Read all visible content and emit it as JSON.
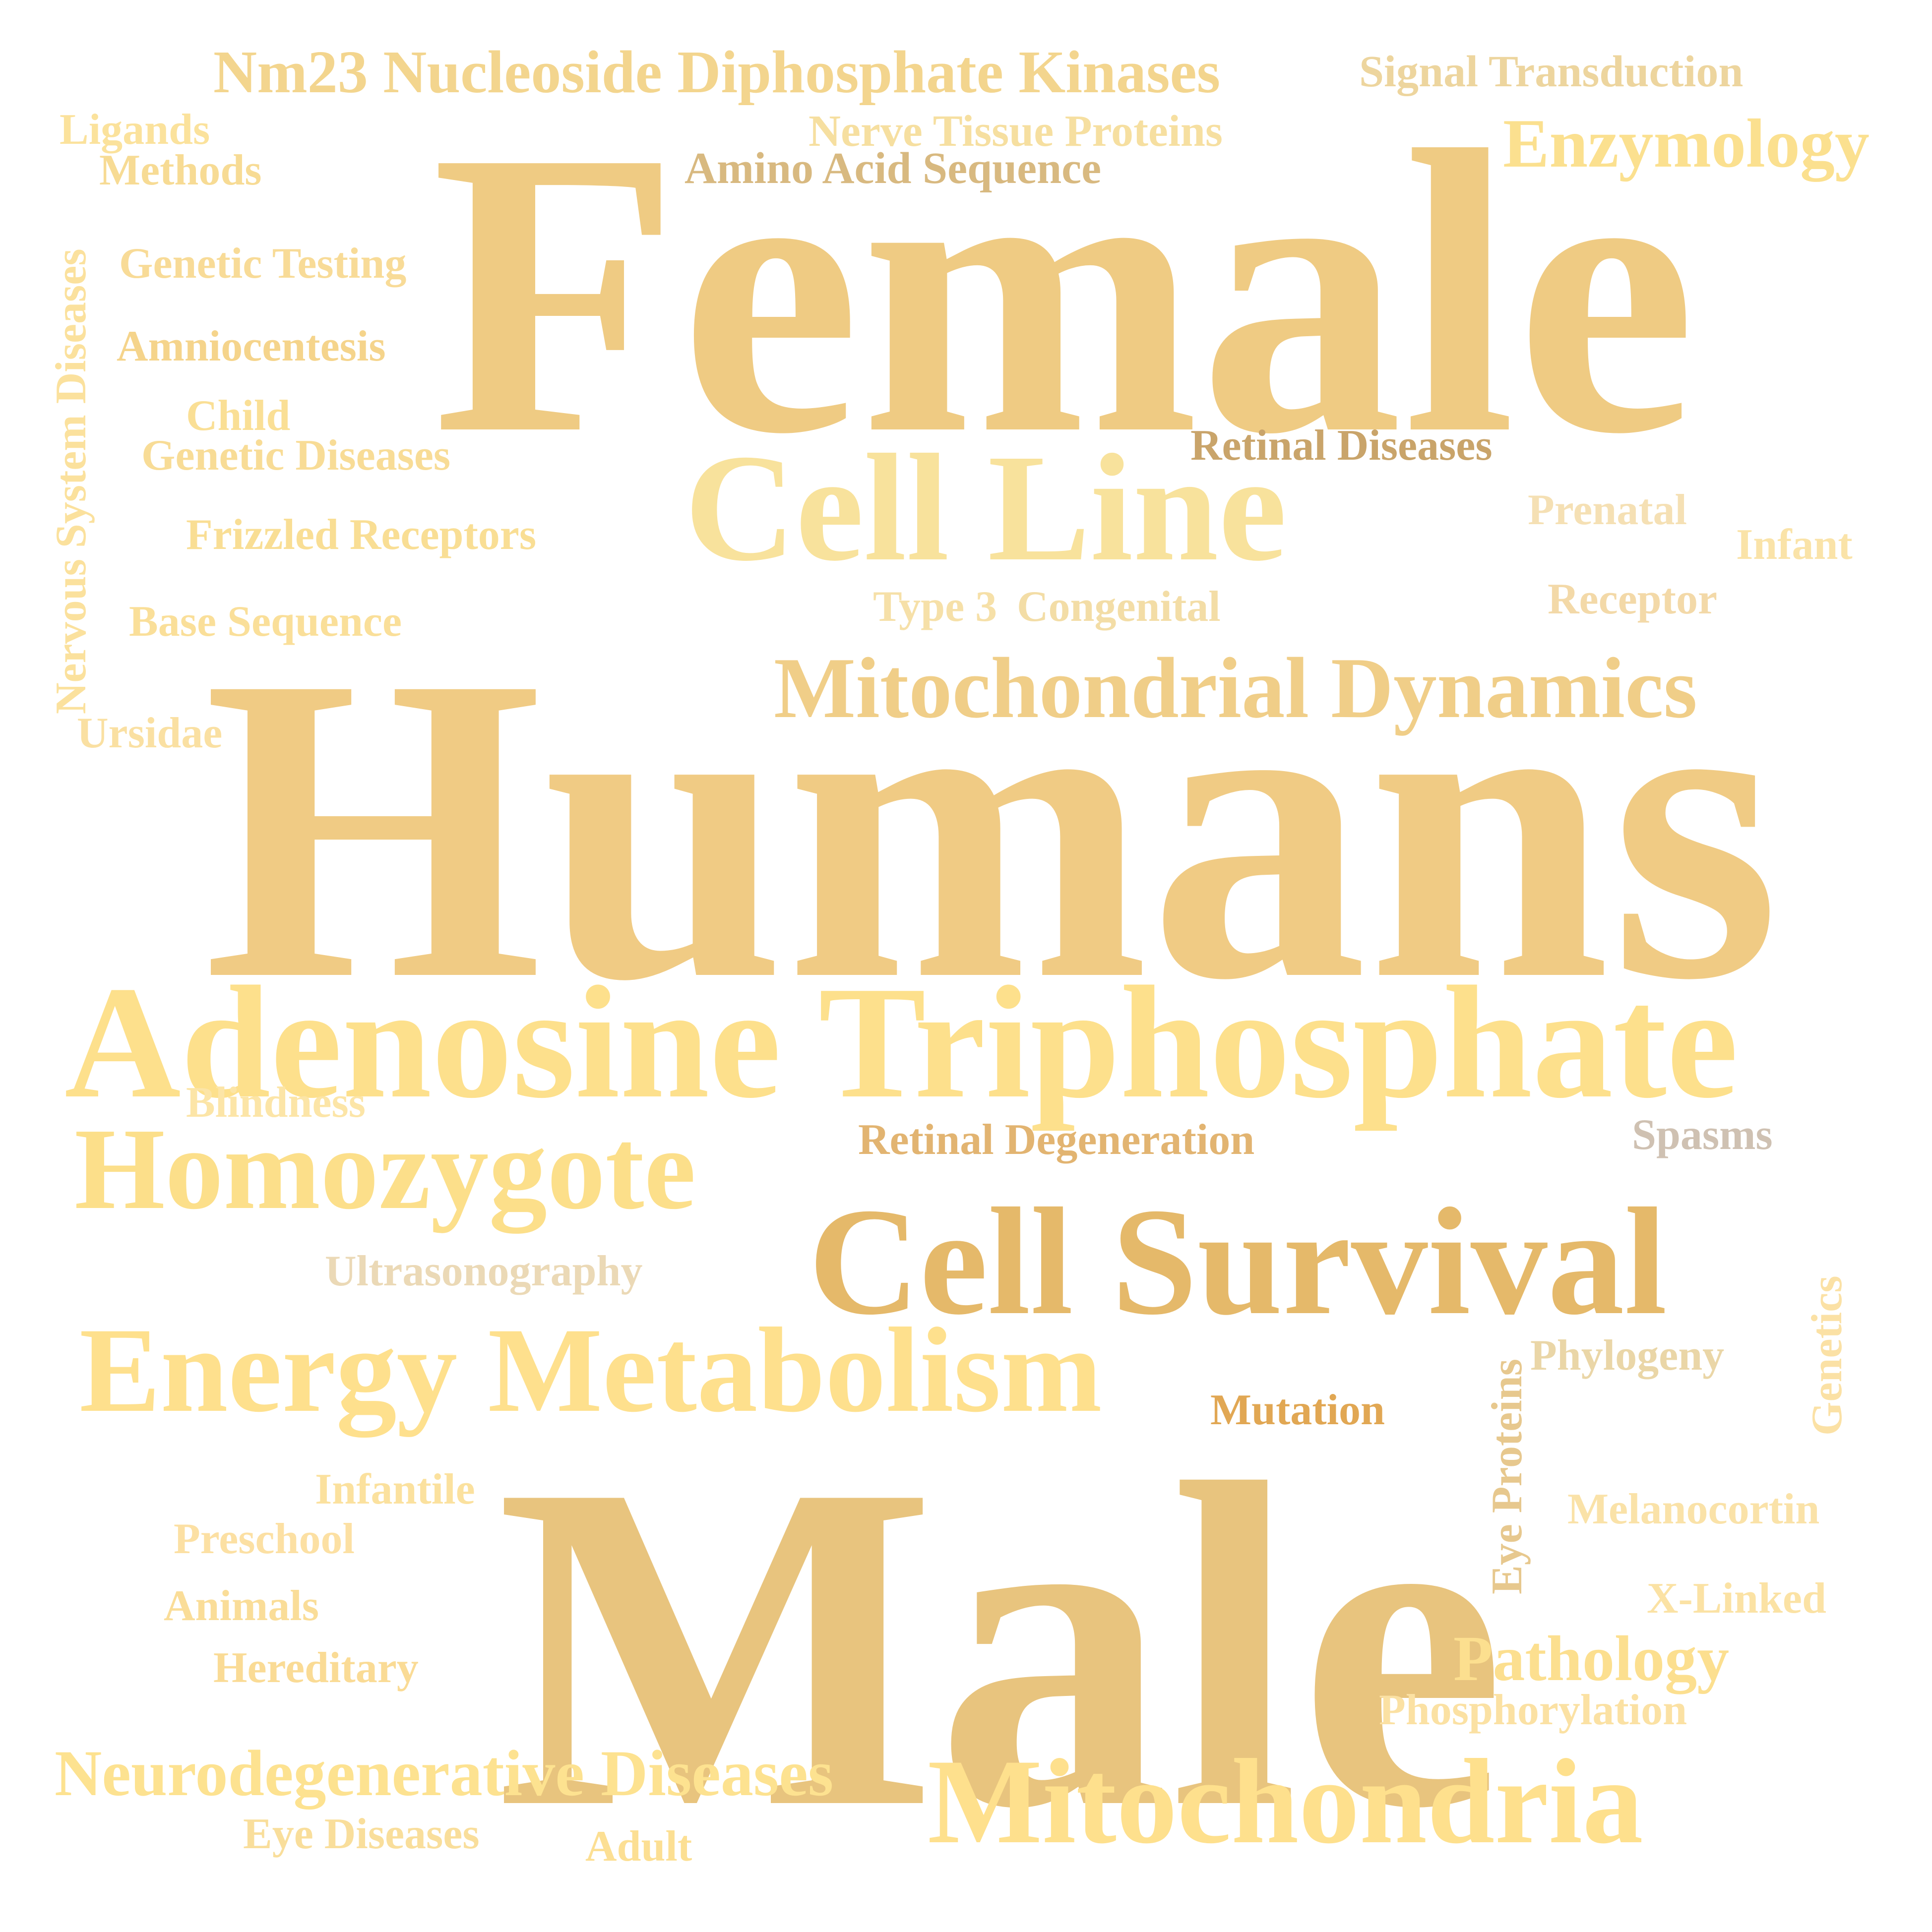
{
  "words": {
    "female": {
      "text": "Female",
      "color": "#EFCB83"
    },
    "humans": {
      "text": "Humans",
      "color": "#F0CB84"
    },
    "male": {
      "text": "Male",
      "color": "#E8C47E"
    },
    "adenosine_triphosphate": {
      "text": "Adenosine Triphosphate",
      "color": "#FDE08C"
    },
    "cell_line": {
      "text": "Cell Line",
      "color": "#F8E29C"
    },
    "cell_survival": {
      "text": "Cell Survival",
      "color": "#E5B96A"
    },
    "energy_metabolism": {
      "text": "Energy Metabolism",
      "color": "#FEE08D"
    },
    "homozygote": {
      "text": "Homozygote",
      "color": "#FCDF8A"
    },
    "mitochondria": {
      "text": "Mitochondria",
      "color": "#FEE08D"
    },
    "mitochondrial_dynamics": {
      "text": "Mitochondrial Dynamics",
      "color": "#F0CE88"
    },
    "neurodegenerative_diseases": {
      "text": "Neurodegenerative Diseases",
      "color": "#FDE290"
    },
    "nm23": {
      "text": "Nm23 Nucleoside Diphosphate Kinases",
      "color": "#F3D58E"
    },
    "enzymology": {
      "text": "Enzymology",
      "color": "#FBE08F"
    },
    "signal_transduction": {
      "text": "Signal Transduction",
      "color": "#EDD59E"
    },
    "nerve_tissue_proteins": {
      "text": "Nerve Tissue Proteins",
      "color": "#F6DFA0"
    },
    "amino_acid_sequence": {
      "text": "Amino Acid Sequence",
      "color": "#D8B980"
    },
    "ligands": {
      "text": "Ligands",
      "color": "#FBE29C"
    },
    "methods": {
      "text": "Methods",
      "color": "#F7DB94"
    },
    "genetic_testing": {
      "text": "Genetic Testing",
      "color": "#F8DB97"
    },
    "amniocentesis": {
      "text": "Amniocentesis",
      "color": "#F5D48B"
    },
    "child": {
      "text": "Child",
      "color": "#FADF95"
    },
    "genetic_diseases": {
      "text": "Genetic Diseases",
      "color": "#F8DC96"
    },
    "frizzled_receptors": {
      "text": "Frizzled Receptors",
      "color": "#F9DE94"
    },
    "base_sequence": {
      "text": "Base Sequence",
      "color": "#FADF99"
    },
    "ursidae": {
      "text": "Ursidae",
      "color": "#FAE0A2"
    },
    "nervous_system_diseases": {
      "text": "Nervous System Diseases",
      "color": "#FBE19D"
    },
    "retinal_diseases": {
      "text": "Retinal Diseases",
      "color": "#C9A46A"
    },
    "prenatal": {
      "text": "Prenatal",
      "color": "#F5E0B4"
    },
    "infant": {
      "text": "Infant",
      "color": "#FAE3A8"
    },
    "receptor": {
      "text": "Receptor",
      "color": "#F3D9A8"
    },
    "type3": {
      "text": "Type 3",
      "color": "#F6E0A8"
    },
    "congenital": {
      "text": "Congenital",
      "color": "#F3DDA6"
    },
    "blindness": {
      "text": "Blindness",
      "color": "#FCE5A7"
    },
    "retinal_degeneration": {
      "text": "Retinal Degeneration",
      "color": "#E2B471"
    },
    "spasms": {
      "text": "Spasms",
      "color": "#CFC1B2"
    },
    "ultrasonography": {
      "text": "Ultrasonography",
      "color": "#EBD9B6"
    },
    "phylogeny": {
      "text": "Phylogeny",
      "color": "#EAD6A7"
    },
    "genetics": {
      "text": "Genetics",
      "color": "#FBE1A5"
    },
    "eye_proteins": {
      "text": "Eye Proteins",
      "color": "#E7C88E"
    },
    "mutation": {
      "text": "Mutation",
      "color": "#E1A753"
    },
    "infantile": {
      "text": "Infantile",
      "color": "#FBE19E"
    },
    "preschool": {
      "text": "Preschool",
      "color": "#FCE0A3"
    },
    "animals": {
      "text": "Animals",
      "color": "#FADD98"
    },
    "hereditary": {
      "text": "Hereditary",
      "color": "#FADB95"
    },
    "melanocortin": {
      "text": "Melanocortin",
      "color": "#FAE2A8"
    },
    "x_linked": {
      "text": "X-Linked",
      "color": "#FBE2A4"
    },
    "pathology": {
      "text": "Pathology",
      "color": "#FCDF8F"
    },
    "phosphorylation": {
      "text": "Phosphorylation",
      "color": "#FBE1A3"
    },
    "eye_diseases": {
      "text": "Eye Diseases",
      "color": "#F9DE9B"
    },
    "adult": {
      "text": "Adult",
      "color": "#FCDF93"
    }
  }
}
